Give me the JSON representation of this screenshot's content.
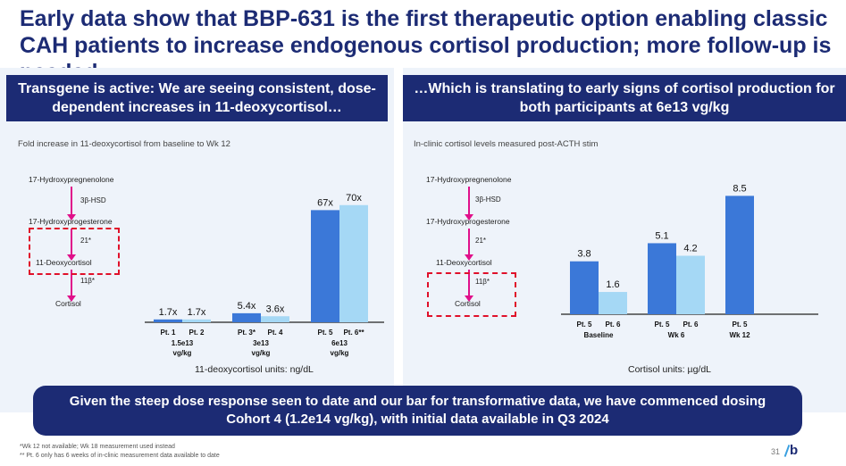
{
  "title": "Early data show that BBP-631 is the first therapeutic option enabling classic CAH patients to increase endogenous cortisol production; more follow-up is needed",
  "left_panel": {
    "header": "Transgene is active: We are seeing consistent, dose-dependent increases in 11-deoxycortisol…",
    "subtitle": "Fold increase in 11-deoxycortisol from baseline to Wk 12",
    "units": "11-deoxycortisol units: ng/dL",
    "pathway": {
      "step1": "17-Hydroxypregnenolone",
      "enzyme1": "3β-HSD",
      "step2": "17-Hydroxyprogesterone",
      "enzyme2": "21*",
      "step3": "11-Deoxycortisol",
      "enzyme3": "11β*",
      "step4": "Cortisol"
    }
  },
  "right_panel": {
    "header": "…Which is translating to early signs of cortisol production for both participants at 6e13 vg/kg",
    "subtitle": "In-clinic cortisol levels measured post-ACTH stim",
    "units": "Cortisol units: µg/dL",
    "pathway": {
      "step1": "17-Hydroxypregnenolone",
      "enzyme1": "3β-HSD",
      "step2": "17-Hydroxyprogesterone",
      "enzyme2": "21*",
      "step3": "11-Deoxycortisol",
      "enzyme3": "11β*",
      "step4": "Cortisol"
    }
  },
  "chart_data": [
    {
      "type": "bar",
      "title": "Fold increase in 11-deoxycortisol from baseline to Wk 12",
      "ylabel": "",
      "ylim": [
        0,
        80
      ],
      "groups": [
        {
          "label_lines": [
            "1.5e13",
            "vg/kg"
          ],
          "bars": [
            {
              "label": "Pt. 1",
              "value": 1.7,
              "value_label": "1.7x",
              "color": "#3b78d8"
            },
            {
              "label": "Pt. 2",
              "value": 1.7,
              "value_label": "1.7x",
              "color": "#a5d8f5"
            }
          ]
        },
        {
          "label_lines": [
            "3e13",
            "vg/kg"
          ],
          "bars": [
            {
              "label": "Pt. 3*",
              "value": 5.4,
              "value_label": "5.4x",
              "color": "#3b78d8"
            },
            {
              "label": "Pt. 4",
              "value": 3.6,
              "value_label": "3.6x",
              "color": "#a5d8f5"
            }
          ]
        },
        {
          "label_lines": [
            "6e13",
            "vg/kg"
          ],
          "bars": [
            {
              "label": "Pt. 5",
              "value": 67,
              "value_label": "67x",
              "color": "#3b78d8"
            },
            {
              "label": "Pt. 6**",
              "value": 70,
              "value_label": "70x",
              "color": "#a5d8f5"
            }
          ]
        }
      ]
    },
    {
      "type": "bar",
      "title": "In-clinic cortisol levels measured post-ACTH stim",
      "ylabel": "",
      "ylim": [
        0,
        10
      ],
      "groups": [
        {
          "label_lines": [
            "Baseline"
          ],
          "bars": [
            {
              "label": "Pt. 5",
              "value": 3.8,
              "value_label": "3.8",
              "color": "#3b78d8"
            },
            {
              "label": "Pt. 6",
              "value": 1.6,
              "value_label": "1.6",
              "color": "#a5d8f5"
            }
          ]
        },
        {
          "label_lines": [
            "Wk 6"
          ],
          "bars": [
            {
              "label": "Pt. 5",
              "value": 5.1,
              "value_label": "5.1",
              "color": "#3b78d8"
            },
            {
              "label": "Pt. 6",
              "value": 4.2,
              "value_label": "4.2",
              "color": "#a5d8f5"
            }
          ]
        },
        {
          "label_lines": [
            "Wk 12"
          ],
          "bars": [
            {
              "label": "Pt. 5",
              "value": 8.5,
              "value_label": "8.5",
              "color": "#3b78d8"
            }
          ]
        }
      ]
    }
  ],
  "banner": "Given the steep dose response seen to date and our bar for transformative data, we have commenced dosing Cohort 4 (1.2e14 vg/kg), with initial data available in Q3 2024",
  "footnotes": [
    "*Wk 12 not available; Wk 18 measurement used instead",
    "** Pt. 6 only has 6 weeks of in-clinic measurement data available to date"
  ],
  "page_number": "31",
  "logo_text": "b",
  "colors": {
    "navy": "#1c2b74",
    "dark_bar": "#3b78d8",
    "light_bar": "#a5d8f5",
    "pathway_arrow": "#e0108a",
    "dashed_box": "#e0102a"
  }
}
